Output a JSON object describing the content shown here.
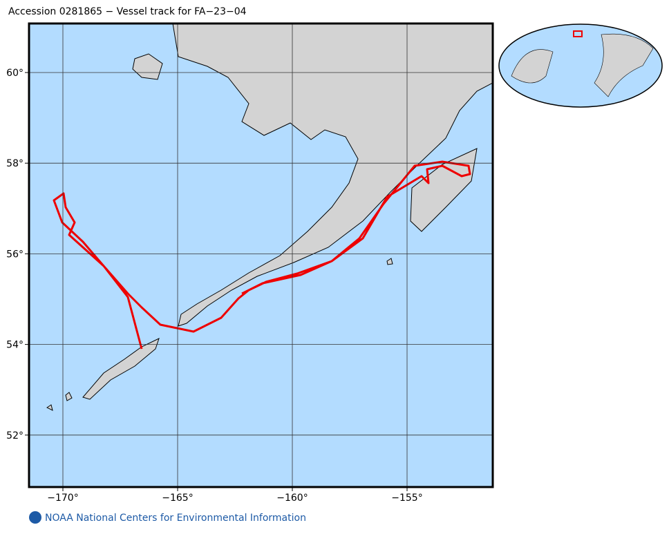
{
  "title": "Accession 0281865 − Vessel track for FA−23−04",
  "map": {
    "x_ticks": [
      {
        "value": -170,
        "label": "−170°"
      },
      {
        "value": -165,
        "label": "−165°"
      },
      {
        "value": -160,
        "label": "−160°"
      },
      {
        "value": -155,
        "label": "−155°"
      }
    ],
    "y_ticks": [
      {
        "value": 52,
        "label": "52°"
      },
      {
        "value": 54,
        "label": "54°"
      },
      {
        "value": 56,
        "label": "56°"
      },
      {
        "value": 58,
        "label": "58°"
      },
      {
        "value": 60,
        "label": "60°"
      }
    ]
  },
  "footer": "NOAA National Centers for Environmental Information"
}
